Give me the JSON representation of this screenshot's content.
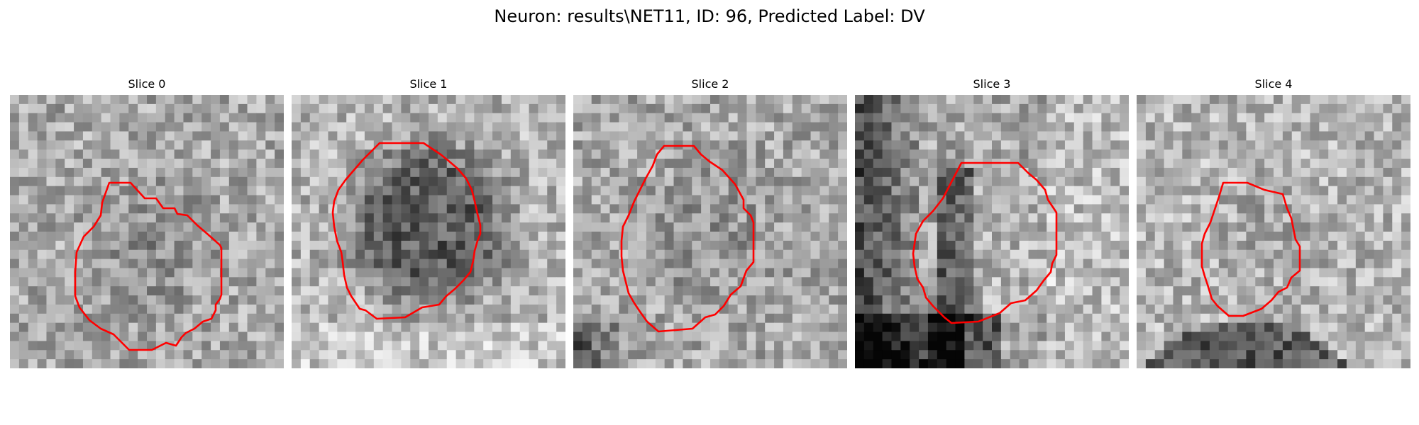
{
  "figure": {
    "title": "Neuron: results\\NET11, ID: 96, Predicted Label: DV"
  },
  "panels": [
    {
      "title": "Slice 0"
    },
    {
      "title": "Slice 1"
    },
    {
      "title": "Slice 2"
    },
    {
      "title": "Slice 3"
    },
    {
      "title": "Slice 4"
    }
  ],
  "contour_color": "#ff0000",
  "colormap": "gray"
}
